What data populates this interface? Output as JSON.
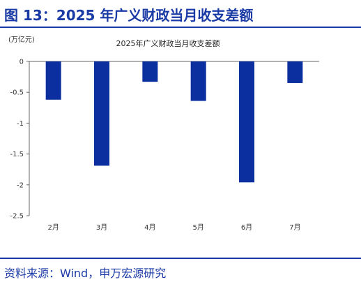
{
  "figure_title": "图 13：2025 年广义财政当月收支差额",
  "source": "资料来源：Wind，申万宏源研究",
  "chart_data": {
    "type": "bar",
    "title": "2025年广义财政当月收支差额",
    "unit": "(万亿元)",
    "categories": [
      "2月",
      "3月",
      "4月",
      "5月",
      "6月",
      "7月"
    ],
    "values": [
      -0.62,
      -1.69,
      -0.33,
      -0.64,
      -1.96,
      -0.35
    ],
    "ylim": [
      -2.5,
      0
    ],
    "yticks": [
      0,
      -0.5,
      -1,
      -1.5,
      -2,
      -2.5
    ],
    "ytick_labels": [
      "0",
      "-0.5",
      "-1",
      "-1.5",
      "-2",
      "-2.5"
    ],
    "bar_color": "#0b2f9e",
    "grid": false,
    "legend": "none"
  }
}
